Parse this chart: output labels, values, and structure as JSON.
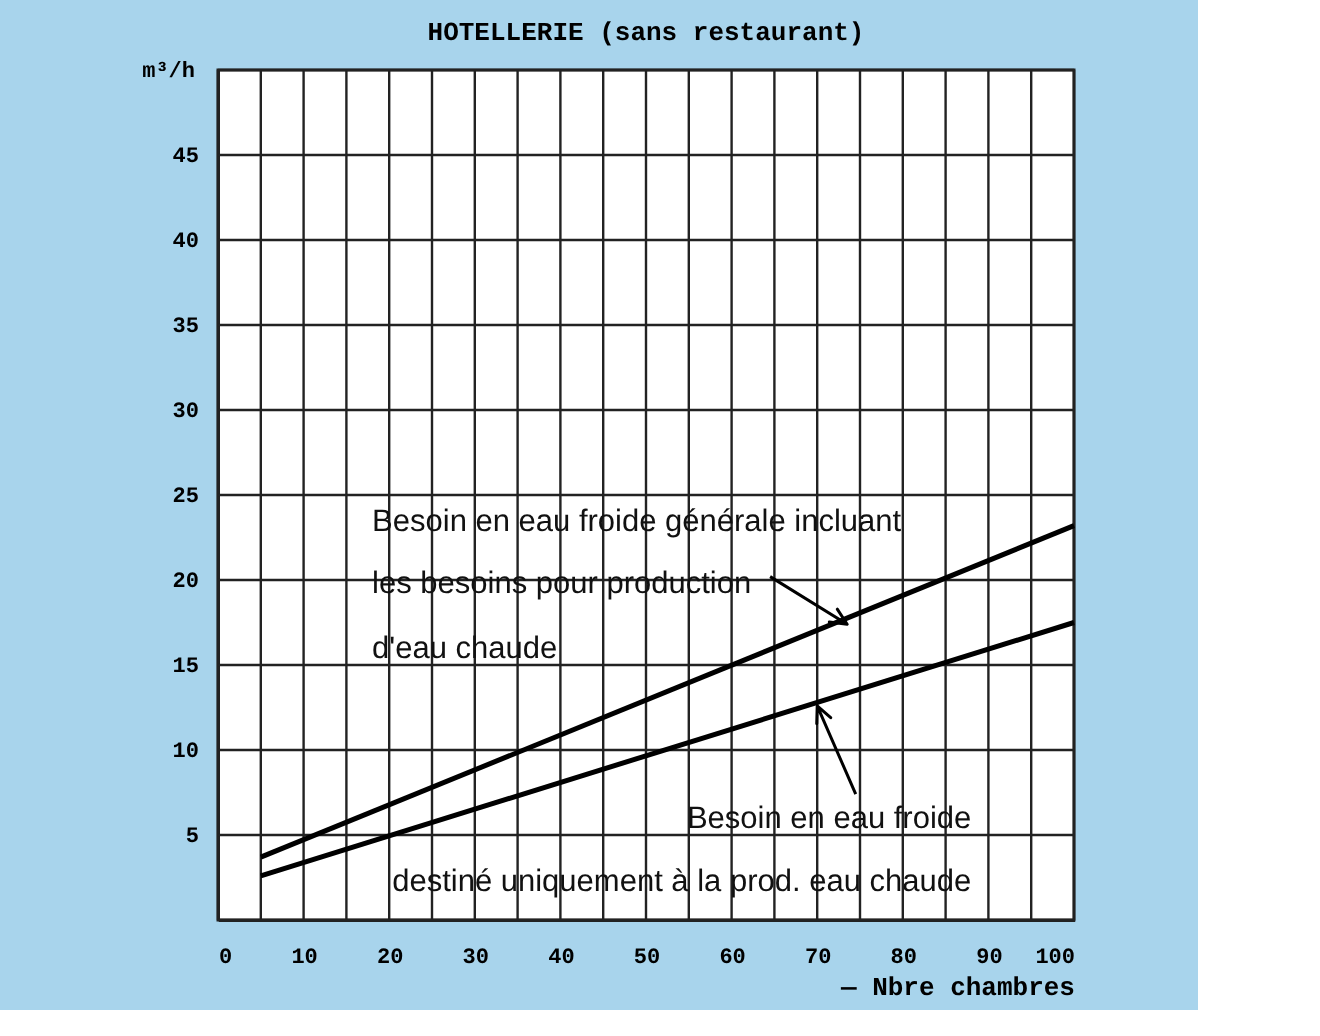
{
  "chart_data": {
    "type": "line",
    "title": "HOTELLERIE (sans restaurant)",
    "xlabel": "— Nbre chambres",
    "ylabel": "m³/h",
    "x": [
      5,
      100
    ],
    "series": [
      {
        "color": "#000000",
        "values": [
          3.7,
          23.2
        ]
      },
      {
        "color": "#000000",
        "values": [
          2.6,
          17.5
        ]
      }
    ],
    "xlim": [
      0,
      100
    ],
    "ylim": [
      0,
      50
    ],
    "xticks": [
      0,
      {
        "value": 5,
        "label": null
      },
      10,
      {
        "value": 15,
        "label": null
      },
      20,
      {
        "value": 25,
        "label": null
      },
      30,
      {
        "value": 35,
        "label": null
      },
      40,
      {
        "value": 45,
        "label": null
      },
      50,
      {
        "value": 55,
        "label": null
      },
      60,
      {
        "value": 65,
        "label": null
      },
      70,
      {
        "value": 75,
        "label": null
      },
      80,
      {
        "value": 85,
        "label": null
      },
      90,
      {
        "value": 95,
        "label": null
      },
      100
    ],
    "yticks": [
      {
        "value": 0,
        "label": null
      },
      5,
      10,
      15,
      20,
      25,
      30,
      35,
      40,
      45,
      {
        "value": 50,
        "label": null
      }
    ],
    "grid": true,
    "marker": "none",
    "line_style": "solid",
    "annotations": [
      "Besoin en eau froide générale incluant",
      {
        "text": "les besoins pour production",
        "x": 73.5,
        "y": 17.4
      },
      "d'eau chaude",
      {
        "text": "Besoin en eau froide",
        "x": 70,
        "y": 12.6
      },
      "destiné uniquement à la prod. eau chaude"
    ]
  }
}
